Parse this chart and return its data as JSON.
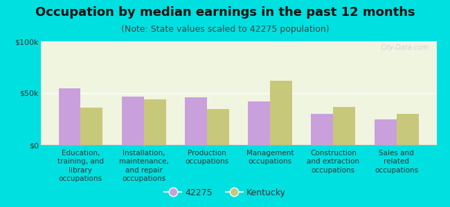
{
  "title": "Occupation by median earnings in the past 12 months",
  "subtitle": "(Note: State values scaled to 42275 population)",
  "background_color": "#00e0e0",
  "plot_bg_top": "#f0f5e0",
  "plot_bg_bottom": "#e8f0d0",
  "categories": [
    "Education,\ntraining, and\nlibrary\noccupations",
    "Installation,\nmaintenance,\nand repair\noccupations",
    "Production\noccupations",
    "Management\noccupations",
    "Construction\nand extraction\noccupations",
    "Sales and\nrelated\noccupations"
  ],
  "values_42275": [
    55000,
    47000,
    46000,
    42000,
    30000,
    25000
  ],
  "values_kentucky": [
    36000,
    44000,
    35000,
    62000,
    37000,
    30000
  ],
  "color_42275": "#c9a0dc",
  "color_kentucky": "#c8c87a",
  "ylim": [
    0,
    100000
  ],
  "yticks": [
    0,
    50000,
    100000
  ],
  "ytick_labels": [
    "$0",
    "$50k",
    "$100k"
  ],
  "legend_labels": [
    "42275",
    "Kentucky"
  ],
  "bar_width": 0.35,
  "title_fontsize": 13,
  "subtitle_fontsize": 9,
  "tick_fontsize": 8,
  "xlabel_fontsize": 7.5,
  "legend_fontsize": 9,
  "watermark": "City-Data.com"
}
